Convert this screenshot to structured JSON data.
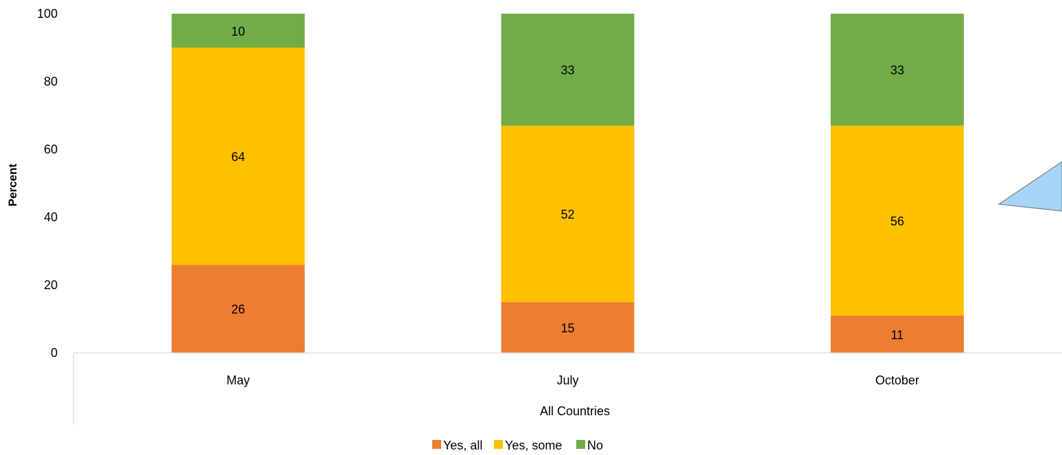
{
  "chart_data": {
    "type": "bar",
    "stacked": true,
    "categories": [
      "May",
      "July",
      "October"
    ],
    "group_label": "All Countries",
    "ylabel": "Percent",
    "ylim": [
      0,
      100
    ],
    "yticks": [
      0,
      20,
      40,
      60,
      80,
      100
    ],
    "grid": false,
    "legend_position": "bottom",
    "series": [
      {
        "name": "Yes, all",
        "color": "#ED7D31",
        "values": [
          26,
          15,
          11
        ]
      },
      {
        "name": "Yes, some",
        "color": "#FFC000",
        "values": [
          64,
          52,
          56
        ]
      },
      {
        "name": "No",
        "color": "#70AD47",
        "values": [
          10,
          33,
          33
        ]
      }
    ]
  },
  "callout_color": "#A6D5F7"
}
